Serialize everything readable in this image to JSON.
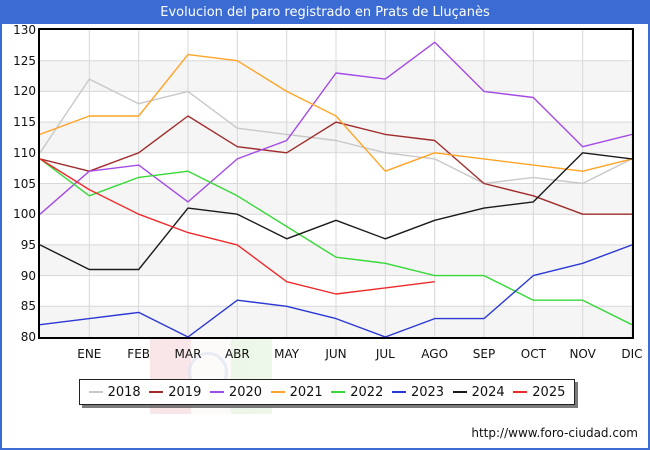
{
  "window": {
    "title": "Evolucion del paro registrado en Prats de Lluçanès"
  },
  "footer": {
    "url": "http://www.foro-ciudad.com"
  },
  "chart_data": {
    "type": "line",
    "title": "Evolucion del paro registrado en Prats de Lluçanès",
    "xlabel": "",
    "ylabel": "",
    "categories": [
      "ENE",
      "FEB",
      "MAR",
      "ABR",
      "MAY",
      "JUN",
      "JUL",
      "AGO",
      "SEP",
      "OCT",
      "NOV",
      "DIC"
    ],
    "yticks": [
      130,
      125,
      120,
      115,
      110,
      105,
      100,
      95,
      90,
      85,
      80
    ],
    "ylim": [
      80,
      130
    ],
    "grid": true,
    "band_colors": [
      "#ffffff",
      "#f5f5f5"
    ],
    "gridline_color": "#d8d8d8",
    "legend_position": "bottom",
    "start_point_note": "each line begins at the left plot edge with the previous year's December value",
    "series": [
      {
        "name": "2018",
        "color": "#c8c8c8",
        "start_value": 110,
        "values": [
          122,
          118,
          120,
          114,
          113,
          112,
          110,
          109,
          105,
          106,
          105,
          109
        ]
      },
      {
        "name": "2019",
        "color": "#a02c2c",
        "start_value": 109,
        "values": [
          107,
          110,
          116,
          111,
          110,
          115,
          113,
          112,
          105,
          103,
          100,
          100
        ]
      },
      {
        "name": "2020",
        "color": "#a44ae6",
        "start_value": 100,
        "values": [
          107,
          108,
          102,
          109,
          112,
          123,
          122,
          128,
          120,
          119,
          111,
          113
        ]
      },
      {
        "name": "2021",
        "color": "#ffa428",
        "start_value": 113,
        "values": [
          116,
          116,
          126,
          125,
          120,
          116,
          107,
          110,
          109,
          108,
          107,
          109
        ]
      },
      {
        "name": "2022",
        "color": "#37d837",
        "start_value": 109,
        "values": [
          103,
          106,
          107,
          103,
          98,
          93,
          92,
          90,
          90,
          86,
          86,
          82
        ]
      },
      {
        "name": "2023",
        "color": "#2b38d4",
        "start_value": 82,
        "values": [
          83,
          84,
          80,
          86,
          85,
          83,
          80,
          83,
          83,
          90,
          92,
          95
        ]
      },
      {
        "name": "2024",
        "color": "#1a1a1a",
        "start_value": 95,
        "values": [
          91,
          91,
          101,
          100,
          96,
          99,
          96,
          99,
          101,
          102,
          110,
          109
        ]
      },
      {
        "name": "2025",
        "color": "#ee2b2b",
        "start_value": 109,
        "values": [
          104,
          100,
          97,
          95,
          89,
          87,
          88,
          89,
          null,
          null,
          null,
          null
        ]
      }
    ]
  }
}
